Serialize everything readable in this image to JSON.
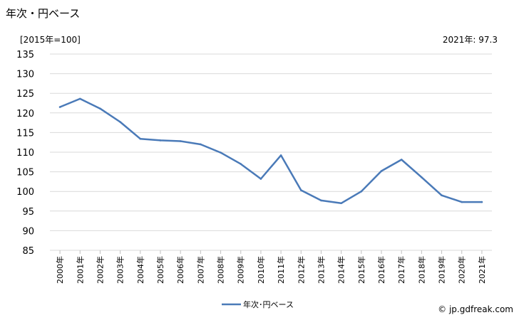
{
  "header": {
    "title": "年次・円ベース",
    "unit_label": "[2015年=100]",
    "latest_value": "2021年: 97.3"
  },
  "footer": {
    "credit": "© jp.gdfreak.com"
  },
  "chart_data": {
    "type": "line",
    "categories": [
      "2000年",
      "2001年",
      "2002年",
      "2003年",
      "2004年",
      "2005年",
      "2006年",
      "2007年",
      "2008年",
      "2009年",
      "2010年",
      "2011年",
      "2012年",
      "2013年",
      "2014年",
      "2015年",
      "2016年",
      "2017年",
      "2018年",
      "2019年",
      "2020年",
      "2021年"
    ],
    "series": [
      {
        "name": "年次･円ベース",
        "color": "#4a7ab8",
        "values": [
          121.5,
          123.6,
          121.1,
          117.7,
          113.4,
          113.0,
          112.8,
          112.0,
          109.9,
          107.0,
          103.2,
          109.2,
          100.3,
          97.7,
          97.0,
          100.0,
          105.2,
          108.1,
          103.6,
          99.0,
          97.3,
          97.3
        ]
      }
    ],
    "ylim": [
      85,
      135
    ],
    "yticks": [
      85,
      90,
      95,
      100,
      105,
      110,
      115,
      120,
      125,
      130,
      135
    ],
    "grid": true,
    "legend": "bottom-center"
  }
}
